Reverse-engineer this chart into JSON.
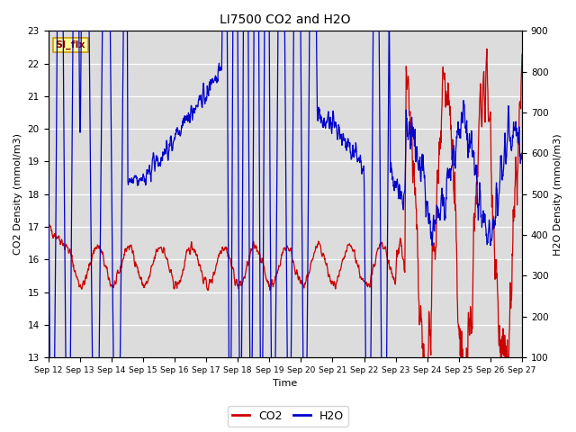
{
  "title": "LI7500 CO2 and H2O",
  "xlabel": "Time",
  "ylabel_left": "CO2 Density (mmol/m3)",
  "ylabel_right": "H2O Density (mmol/m3)",
  "ylim_left": [
    13.0,
    23.0
  ],
  "ylim_right": [
    100,
    900
  ],
  "yticks_left": [
    13.0,
    14.0,
    15.0,
    16.0,
    17.0,
    18.0,
    19.0,
    20.0,
    21.0,
    22.0,
    23.0
  ],
  "yticks_right": [
    100,
    200,
    300,
    400,
    500,
    600,
    700,
    800,
    900
  ],
  "xtick_labels": [
    "Sep 12",
    "Sep 13",
    "Sep 14",
    "Sep 15",
    "Sep 16",
    "Sep 17",
    "Sep 18",
    "Sep 19",
    "Sep 20",
    "Sep 21",
    "Sep 22",
    "Sep 23",
    "Sep 24",
    "Sep 25",
    "Sep 26",
    "Sep 27"
  ],
  "annotation_text": "SI_flx",
  "annotation_bg": "#FFFF99",
  "annotation_border": "#CC9900",
  "bg_color": "#DCDCDC",
  "co2_color": "#CC0000",
  "h2o_color": "#0000CC",
  "legend_co2": "CO2",
  "legend_h2o": "H2O",
  "n_days": 15,
  "pts_per_day": 96,
  "seed": 42
}
